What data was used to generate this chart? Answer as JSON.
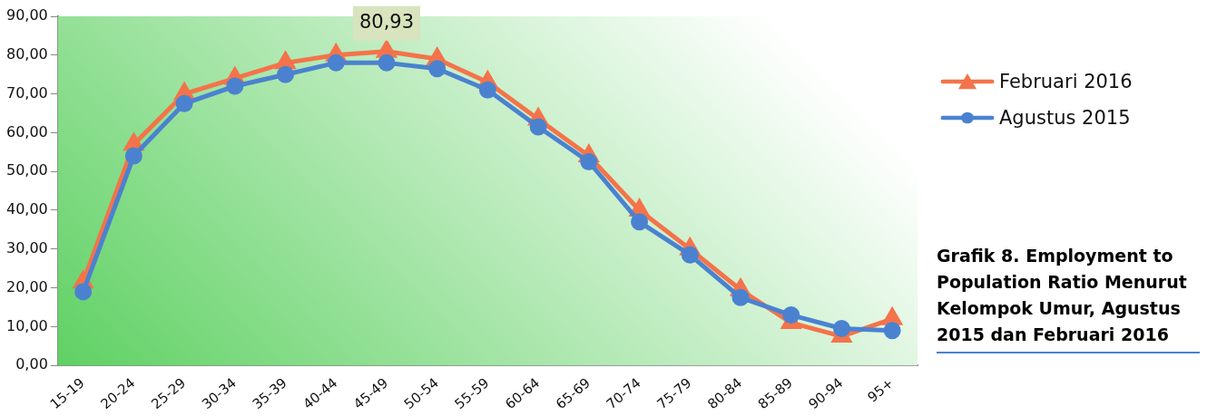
{
  "chart_data": {
    "type": "line",
    "title": "Grafik 8. Employment to Population Ratio Menurut Kelompok Umur, Agustus 2015 dan Februari 2016",
    "categories": [
      "15-19",
      "20-24",
      "25-29",
      "30-34",
      "35-39",
      "40-44",
      "45-49",
      "50-54",
      "55-59",
      "60-64",
      "65-69",
      "70-74",
      "75-79",
      "80-84",
      "85-89",
      "90-94",
      "95+"
    ],
    "series": [
      {
        "name": "Februari 2016",
        "color": "#f4734a",
        "marker": "triangle",
        "values": [
          21.5,
          57,
          70,
          74,
          78,
          80,
          80.93,
          79,
          73,
          63.5,
          54,
          40,
          30,
          19.5,
          11,
          7.5,
          12
        ]
      },
      {
        "name": "Agustus 2015",
        "color": "#4a82d0",
        "marker": "circle",
        "values": [
          19,
          54,
          67.5,
          72,
          75,
          78,
          78,
          76.5,
          71,
          61.5,
          52.5,
          37,
          28.5,
          17.5,
          13,
          9.5,
          9
        ]
      }
    ],
    "ylim": [
      0,
      90
    ],
    "yticks": [
      {
        "value": 0,
        "label": "0,00"
      },
      {
        "value": 10,
        "label": "10,00"
      },
      {
        "value": 20,
        "label": "20,00"
      },
      {
        "value": 30,
        "label": "30,00"
      },
      {
        "value": 40,
        "label": "40,00"
      },
      {
        "value": 50,
        "label": "50,00"
      },
      {
        "value": 60,
        "label": "60,00"
      },
      {
        "value": 70,
        "label": "70,00"
      },
      {
        "value": 80,
        "label": "80,00"
      },
      {
        "value": 90,
        "label": "90,00"
      }
    ],
    "annotations": [
      {
        "text": "80,93",
        "x": "45-49",
        "y": 80.93
      }
    ],
    "grid": false,
    "legend": "top right",
    "line_style": "solid"
  }
}
